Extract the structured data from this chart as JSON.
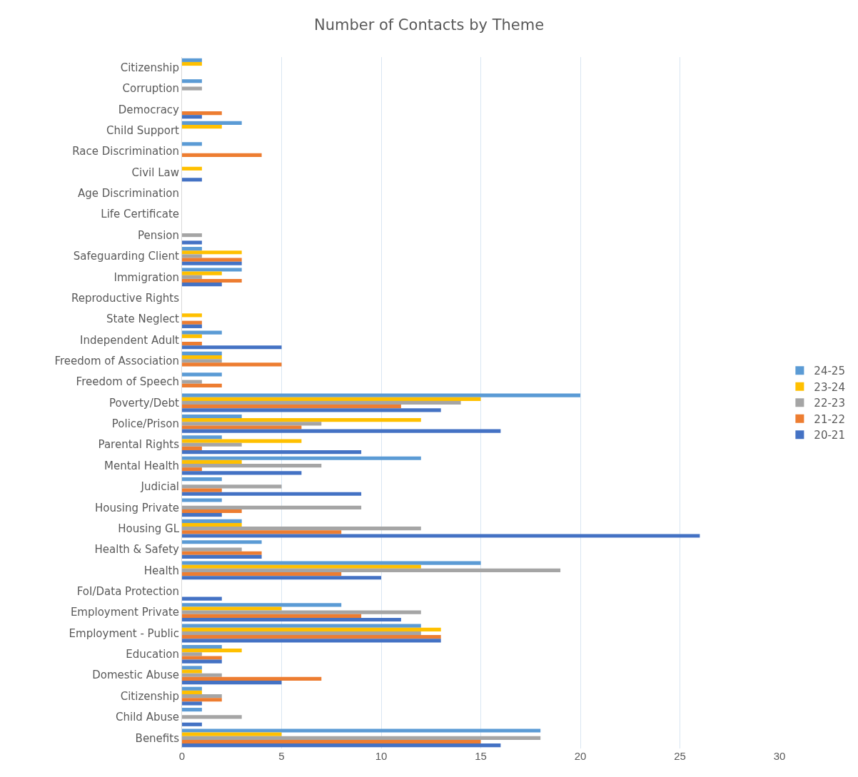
{
  "chart_data": {
    "type": "bar",
    "orientation": "horizontal",
    "title": "Number of Contacts by Theme",
    "categories": [
      "Citizenship",
      "Corruption",
      "Democracy",
      "Child Support",
      "Race Discrimination",
      "Civil Law",
      "Age Discrimination",
      "Life Certificate",
      "Pension",
      "Safeguarding Client",
      "Immigration",
      "Reproductive Rights",
      "State Neglect",
      "Independent Adult",
      "Freedom of Association",
      "Freedom of Speech",
      "Poverty/Debt",
      "Police/Prison",
      "Parental Rights",
      "Mental Health",
      "Judicial",
      "Housing Private",
      "Housing GL",
      "Health & Safety",
      "Health",
      "FoI/Data Protection",
      "Employment Private",
      "Employment - Public",
      "Education",
      "Domestic Abuse",
      "Citizenship",
      "Child Abuse",
      "Benefits"
    ],
    "series": [
      {
        "name": "24-25",
        "color": "#5b9bd5",
        "values": [
          1,
          1,
          0,
          3,
          1,
          0,
          0,
          0,
          0,
          1,
          3,
          0,
          0,
          2,
          2,
          2,
          20,
          3,
          2,
          12,
          2,
          2,
          3,
          4,
          15,
          0,
          8,
          12,
          2,
          1,
          1,
          1,
          18
        ]
      },
      {
        "name": "23-24",
        "color": "#ffc000",
        "values": [
          1,
          0,
          0,
          2,
          0,
          1,
          0,
          0,
          0,
          3,
          2,
          0,
          1,
          1,
          2,
          0,
          15,
          12,
          6,
          3,
          0,
          0,
          3,
          0,
          12,
          0,
          5,
          13,
          3,
          1,
          1,
          0,
          5
        ]
      },
      {
        "name": "22-23",
        "color": "#a5a5a5",
        "values": [
          0,
          1,
          0,
          0,
          0,
          0,
          0,
          0,
          1,
          1,
          1,
          0,
          0,
          0,
          2,
          1,
          14,
          7,
          3,
          7,
          5,
          9,
          12,
          3,
          19,
          0,
          12,
          12,
          1,
          2,
          2,
          3,
          18
        ]
      },
      {
        "name": "21-22",
        "color": "#ed7d31",
        "values": [
          0,
          0,
          2,
          0,
          4,
          0,
          0,
          0,
          0,
          3,
          3,
          0,
          1,
          1,
          5,
          2,
          11,
          6,
          1,
          1,
          2,
          3,
          8,
          4,
          8,
          0,
          9,
          13,
          2,
          7,
          2,
          0,
          15
        ]
      },
      {
        "name": "20-21",
        "color": "#4472c4",
        "values": [
          0,
          0,
          1,
          0,
          0,
          1,
          0,
          0,
          1,
          3,
          2,
          0,
          1,
          5,
          0,
          0,
          13,
          16,
          9,
          6,
          9,
          2,
          26,
          4,
          10,
          2,
          11,
          13,
          2,
          5,
          1,
          1,
          16
        ]
      }
    ],
    "xlim": [
      0,
      30
    ],
    "xticks": [
      0,
      5,
      10,
      15,
      20,
      25,
      30
    ],
    "grid": "x",
    "legend": "right"
  }
}
